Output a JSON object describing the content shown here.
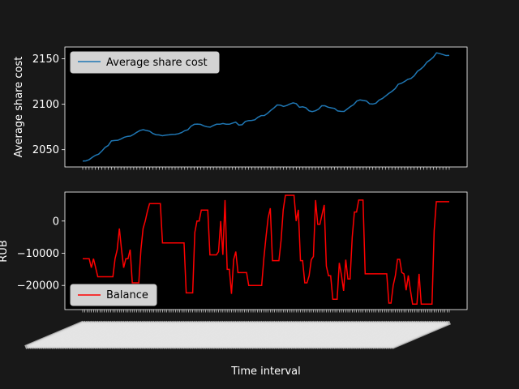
{
  "colors": {
    "background": "#181818",
    "axes_face": "#000000",
    "axes_edge": "#ffffff",
    "top_series": "#1f77b4",
    "bottom_series": "#ff0000",
    "legend_face": "#d3d3d3"
  },
  "xlabel": "Time interval",
  "chart_data": [
    {
      "type": "line",
      "title": "",
      "xlabel": "",
      "ylabel": "Average share cost",
      "ylim": [
        2031,
        2163
      ],
      "yticks": [
        2050,
        2100,
        2150
      ],
      "grid": false,
      "legend_position": "top-left",
      "series": [
        {
          "name": "Average share cost",
          "values": [
            2037.5,
            2037.7,
            2039.0,
            2041.6,
            2043.8,
            2045.1,
            2048.5,
            2052.4,
            2054.6,
            2059.7,
            2060.1,
            2060.3,
            2061.8,
            2063.6,
            2064.6,
            2065.0,
            2066.9,
            2069.2,
            2071.2,
            2072.0,
            2071.1,
            2070.3,
            2067.8,
            2066.5,
            2066.2,
            2065.4,
            2066.0,
            2066.3,
            2066.8,
            2066.9,
            2067.5,
            2068.8,
            2070.9,
            2071.9,
            2075.9,
            2077.9,
            2078.2,
            2077.8,
            2076.2,
            2075.2,
            2074.8,
            2076.6,
            2078.0,
            2078.0,
            2078.8,
            2078.1,
            2078.0,
            2079.2,
            2080.3,
            2077.1,
            2077.5,
            2081.0,
            2082.0,
            2082.2,
            2082.9,
            2085.7,
            2087.5,
            2087.6,
            2090.0,
            2093.3,
            2095.9,
            2099.2,
            2099.0,
            2097.6,
            2098.6,
            2100.3,
            2101.5,
            2100.6,
            2096.7,
            2097.2,
            2096.2,
            2092.8,
            2091.9,
            2092.8,
            2094.6,
            2098.3,
            2098.3,
            2096.7,
            2096.0,
            2095.4,
            2092.6,
            2092.2,
            2092.1,
            2094.8,
            2097.4,
            2099.6,
            2103.6,
            2104.8,
            2104.1,
            2103.6,
            2100.5,
            2100.2,
            2101.2,
            2104.6,
            2106.3,
            2109.0,
            2111.8,
            2114.2,
            2117.1,
            2122.0,
            2123.1,
            2125.1,
            2127.4,
            2128.4,
            2131.4,
            2136.2,
            2138.6,
            2141.7,
            2146.3,
            2148.8,
            2151.8,
            2156.6,
            2155.8,
            2154.7,
            2153.6,
            2153.8
          ]
        }
      ]
    },
    {
      "type": "line",
      "title": "",
      "xlabel": "Time interval",
      "ylabel": "RUB",
      "ylim": [
        -27500,
        9000
      ],
      "yticks": [
        -20000,
        -10000,
        0
      ],
      "ytick_labels": [
        "−20000",
        "−10000",
        "0"
      ],
      "grid": false,
      "legend_position": "bottom-left",
      "series": [
        {
          "name": "Balance",
          "values": [
            -11700,
            -11700,
            -11700,
            -11700,
            -14500,
            -11700,
            -14500,
            -17300,
            -17300,
            -17300,
            -17300,
            -17300,
            -17300,
            -17300,
            -17300,
            -11700,
            -8900,
            -2300,
            -8900,
            -14500,
            -11700,
            -11700,
            -8900,
            -19200,
            -19200,
            -19200,
            -19200,
            -8900,
            -2300,
            0,
            3000,
            5400,
            5400,
            5400,
            5400,
            5400,
            5400,
            -6800,
            -6800,
            -6800,
            -6800,
            -6800,
            -6800,
            -6800,
            -6800,
            -6800,
            -6800,
            -6800,
            -22300,
            -22300,
            -22300,
            -22300,
            -3500,
            0,
            0,
            3400,
            3400,
            3400,
            3400,
            -10500,
            -10500,
            -10500,
            -10500,
            -9500,
            0,
            -10500,
            6500,
            -15000,
            -15000,
            -22600,
            -12000,
            -9500,
            -16000,
            -16000,
            -16000,
            -16000,
            -16000,
            -20000,
            -20000,
            -20000,
            -20000,
            -20000,
            -20000,
            -20000,
            -11700,
            -5000,
            1000,
            4000,
            -12300,
            -12300,
            -12300,
            -12300,
            -6000,
            3500,
            8000,
            8000,
            8000,
            8000,
            8000,
            0,
            3500,
            -12300,
            -12300,
            -19200,
            -19200,
            -17000,
            -12000,
            -11000,
            6500,
            -1000,
            -1000,
            2000,
            5000,
            -14000,
            -17000,
            -17000,
            -24300,
            -24300,
            -24300,
            -13000,
            -16800,
            -21700,
            -12000,
            -18000,
            -18000,
            -5000,
            2800,
            2800,
            6500,
            6500,
            6500,
            -16400,
            -16400,
            -16400,
            -16400,
            -16400,
            -16400,
            -16400,
            -16400,
            -16400,
            -16400,
            -16400,
            -25500,
            -25500,
            -20000,
            -17000,
            -11900,
            -11900,
            -16000,
            -16400,
            -21500,
            -16900,
            -21500,
            -25800,
            -25800,
            -25800,
            -16400,
            -25800,
            -25800,
            -25800,
            -25800,
            -25800,
            -25800,
            -3000,
            6000,
            6000,
            6000,
            6000,
            6000,
            6000,
            6000
          ]
        }
      ]
    }
  ]
}
